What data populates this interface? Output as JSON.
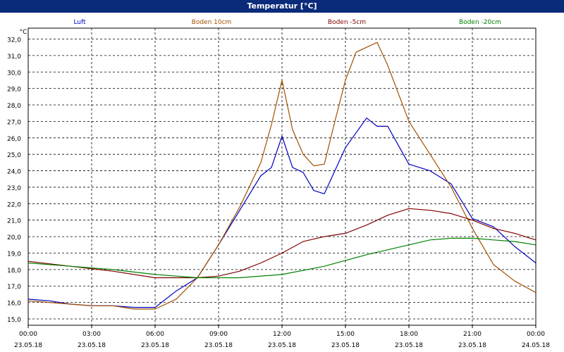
{
  "window": {
    "title": "Temperatur [°C]"
  },
  "chart_data": {
    "type": "line",
    "title": "Temperatur [°C]",
    "ylabel": "°C",
    "ylim": [
      15.0,
      32.0
    ],
    "yticks": [
      "15,0",
      "16,0",
      "17,0",
      "18,0",
      "19,0",
      "20,0",
      "21,0",
      "22,0",
      "23,0",
      "24,0",
      "25,0",
      "26,0",
      "27,0",
      "28,0",
      "29,0",
      "30,0",
      "31,0",
      "32,0"
    ],
    "xticks": [
      {
        "time": "00:00",
        "date": "23.05.18"
      },
      {
        "time": "03:00",
        "date": "23.05.18"
      },
      {
        "time": "06:00",
        "date": "23.05.18"
      },
      {
        "time": "09:00",
        "date": "23.05.18"
      },
      {
        "time": "12:00",
        "date": "23.05.18"
      },
      {
        "time": "15:00",
        "date": "23.05.18"
      },
      {
        "time": "18:00",
        "date": "23.05.18"
      },
      {
        "time": "21:00",
        "date": "23.05.18"
      },
      {
        "time": "00:00",
        "date": "24.05.18"
      }
    ],
    "grid": true,
    "legend": "top",
    "series": [
      {
        "name": "Luft",
        "color": "#0000c0",
        "x": [
          "23.05.18 00:00",
          "23.05.18 01:00",
          "23.05.18 02:00",
          "23.05.18 03:00",
          "23.05.18 04:00",
          "23.05.18 05:00",
          "23.05.18 06:00",
          "23.05.18 07:00",
          "23.05.18 08:00",
          "23.05.18 09:00",
          "23.05.18 10:00",
          "23.05.18 11:00",
          "23.05.18 11:30",
          "23.05.18 12:00",
          "23.05.18 12:30",
          "23.05.18 13:00",
          "23.05.18 13:30",
          "23.05.18 14:00",
          "23.05.18 15:00",
          "23.05.18 16:00",
          "23.05.18 16:30",
          "23.05.18 17:00",
          "23.05.18 18:00",
          "23.05.18 19:00",
          "23.05.18 20:00",
          "23.05.18 21:00",
          "23.05.18 22:00",
          "23.05.18 23:00",
          "24.05.18 00:00"
        ],
        "y": [
          16.2,
          16.1,
          15.9,
          15.8,
          15.8,
          15.7,
          15.7,
          16.7,
          17.5,
          19.5,
          21.6,
          23.7,
          24.2,
          26.1,
          24.2,
          23.9,
          22.8,
          22.6,
          25.4,
          27.2,
          26.7,
          26.7,
          24.4,
          24.0,
          23.2,
          21.1,
          20.6,
          19.4,
          18.4
        ]
      },
      {
        "name": "Boden 10cm",
        "color": "#a05000",
        "x": [
          "23.05.18 00:00",
          "23.05.18 01:00",
          "23.05.18 02:00",
          "23.05.18 03:00",
          "23.05.18 04:00",
          "23.05.18 05:00",
          "23.05.18 06:00",
          "23.05.18 07:00",
          "23.05.18 08:00",
          "23.05.18 09:00",
          "23.05.18 10:00",
          "23.05.18 11:00",
          "23.05.18 11:30",
          "23.05.18 12:00",
          "23.05.18 12:30",
          "23.05.18 13:00",
          "23.05.18 13:30",
          "23.05.18 14:00",
          "23.05.18 14:30",
          "23.05.18 15:00",
          "23.05.18 15:30",
          "23.05.18 16:00",
          "23.05.18 16:30",
          "23.05.18 17:00",
          "23.05.18 18:00",
          "23.05.18 19:00",
          "23.05.18 20:00",
          "23.05.18 21:00",
          "23.05.18 22:00",
          "23.05.18 23:00",
          "24.05.18 00:00"
        ],
        "y": [
          16.1,
          16.0,
          15.9,
          15.8,
          15.8,
          15.6,
          15.6,
          16.2,
          17.5,
          19.5,
          21.8,
          24.5,
          26.8,
          29.5,
          26.5,
          25.0,
          24.3,
          24.4,
          27.0,
          29.5,
          31.2,
          31.5,
          31.8,
          30.4,
          27.0,
          25.0,
          23.0,
          20.5,
          18.3,
          17.3,
          16.6
        ]
      },
      {
        "name": "Boden -5cm",
        "color": "#800000",
        "x": [
          "23.05.18 00:00",
          "23.05.18 02:00",
          "23.05.18 04:00",
          "23.05.18 06:00",
          "23.05.18 08:00",
          "23.05.18 09:00",
          "23.05.18 10:00",
          "23.05.18 11:00",
          "23.05.18 12:00",
          "23.05.18 13:00",
          "23.05.18 14:00",
          "23.05.18 15:00",
          "23.05.18 16:00",
          "23.05.18 17:00",
          "23.05.18 18:00",
          "23.05.18 19:00",
          "23.05.18 20:00",
          "23.05.18 21:00",
          "23.05.18 22:00",
          "23.05.18 23:00",
          "24.05.18 00:00"
        ],
        "y": [
          18.5,
          18.2,
          17.9,
          17.5,
          17.5,
          17.6,
          17.9,
          18.4,
          19.0,
          19.7,
          20.0,
          20.2,
          20.7,
          21.3,
          21.7,
          21.6,
          21.4,
          21.0,
          20.5,
          20.2,
          19.8
        ]
      },
      {
        "name": "Boden -20cm",
        "color": "#008000",
        "x": [
          "23.05.18 00:00",
          "23.05.18 02:00",
          "23.05.18 04:00",
          "23.05.18 06:00",
          "23.05.18 08:00",
          "23.05.18 10:00",
          "23.05.18 12:00",
          "23.05.18 14:00",
          "23.05.18 16:00",
          "23.05.18 18:00",
          "23.05.18 19:00",
          "23.05.18 20:00",
          "23.05.18 21:00",
          "23.05.18 22:00",
          "23.05.18 23:00",
          "24.05.18 00:00"
        ],
        "y": [
          18.4,
          18.2,
          18.0,
          17.7,
          17.5,
          17.5,
          17.7,
          18.2,
          18.9,
          19.5,
          19.8,
          19.9,
          19.9,
          19.8,
          19.7,
          19.5
        ]
      }
    ]
  }
}
